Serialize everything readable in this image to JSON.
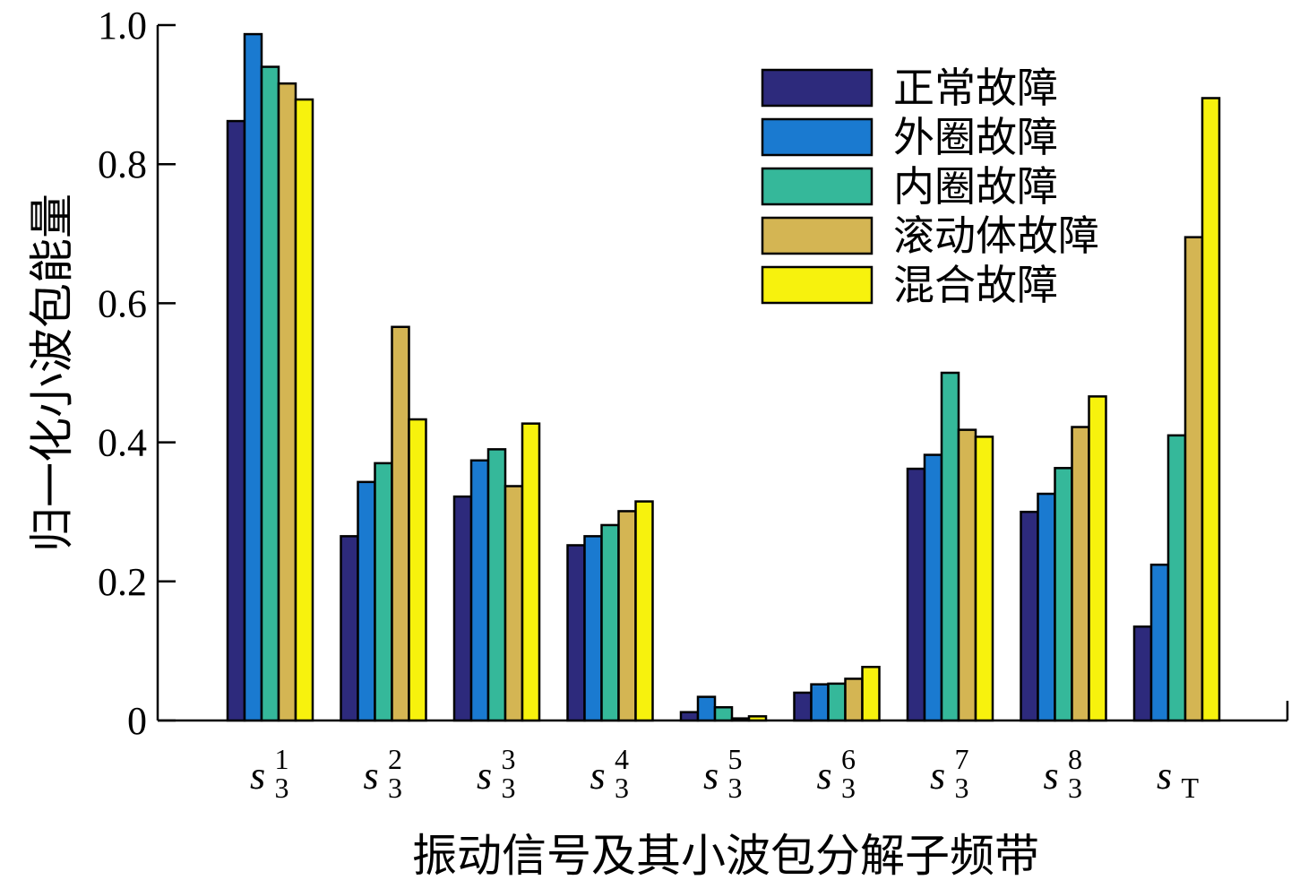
{
  "chart_data": {
    "type": "bar",
    "ylabel": "归一化小波包能量",
    "xlabel": "振动信号及其小波包分解子频带",
    "ylim": [
      0,
      1.0
    ],
    "yticks": [
      "0",
      "0.2",
      "0.4",
      "0.6",
      "0.8",
      "1.0"
    ],
    "categories": [
      {
        "main": "s",
        "sub": "3",
        "sup": "1"
      },
      {
        "main": "s",
        "sub": "3",
        "sup": "2"
      },
      {
        "main": "s",
        "sub": "3",
        "sup": "3"
      },
      {
        "main": "s",
        "sub": "3",
        "sup": "4"
      },
      {
        "main": "s",
        "sub": "3",
        "sup": "5"
      },
      {
        "main": "s",
        "sub": "3",
        "sup": "6"
      },
      {
        "main": "s",
        "sub": "3",
        "sup": "7"
      },
      {
        "main": "s",
        "sub": "3",
        "sup": "8"
      },
      {
        "main": "s",
        "sub": "T",
        "sup": ""
      }
    ],
    "legend_position": "top-right",
    "grid": false,
    "series": [
      {
        "name": "正常故障",
        "color": "#2d2a7c",
        "values": [
          0.862,
          0.265,
          0.322,
          0.252,
          0.012,
          0.04,
          0.362,
          0.3,
          0.135
        ]
      },
      {
        "name": "外圈故障",
        "color": "#1a7ad0",
        "values": [
          0.987,
          0.343,
          0.374,
          0.265,
          0.034,
          0.052,
          0.382,
          0.326,
          0.224
        ]
      },
      {
        "name": "内圈故障",
        "color": "#35b89a",
        "values": [
          0.94,
          0.37,
          0.39,
          0.281,
          0.019,
          0.053,
          0.5,
          0.363,
          0.41
        ]
      },
      {
        "name": "滚动体故障",
        "color": "#d4b553",
        "values": [
          0.916,
          0.566,
          0.337,
          0.301,
          0.003,
          0.06,
          0.418,
          0.422,
          0.695
        ]
      },
      {
        "name": "混合故障",
        "color": "#f7f20d",
        "values": [
          0.893,
          0.433,
          0.427,
          0.315,
          0.006,
          0.077,
          0.408,
          0.466,
          0.895
        ]
      }
    ]
  }
}
